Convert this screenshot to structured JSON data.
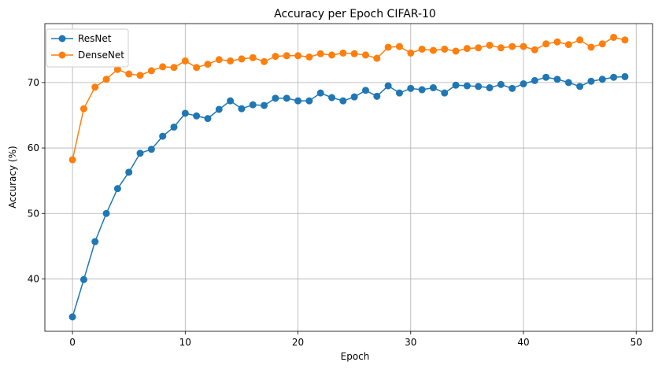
{
  "chart_data": {
    "type": "line",
    "title": "Accuracy per Epoch CIFAR-10",
    "xlabel": "Epoch",
    "ylabel": "Accuracy (%)",
    "xlim": [
      -2.45,
      51.45
    ],
    "ylim": [
      32.0,
      79.0
    ],
    "xticks": [
      0,
      10,
      20,
      30,
      40,
      50
    ],
    "yticks": [
      40,
      50,
      60,
      70
    ],
    "grid": true,
    "legend_position": "top-left",
    "x": [
      0,
      1,
      2,
      3,
      4,
      5,
      6,
      7,
      8,
      9,
      10,
      11,
      12,
      13,
      14,
      15,
      16,
      17,
      18,
      19,
      20,
      21,
      22,
      23,
      24,
      25,
      26,
      27,
      28,
      29,
      30,
      31,
      32,
      33,
      34,
      35,
      36,
      37,
      38,
      39,
      40,
      41,
      42,
      43,
      44,
      45,
      46,
      47,
      48,
      49
    ],
    "series": [
      {
        "name": "ResNet",
        "color": "#1f77b4",
        "values": [
          34.2,
          39.9,
          45.7,
          50.0,
          53.8,
          56.3,
          59.2,
          59.8,
          61.8,
          63.2,
          65.3,
          64.9,
          64.5,
          65.9,
          67.2,
          66.0,
          66.6,
          66.5,
          67.6,
          67.6,
          67.2,
          67.2,
          68.4,
          67.7,
          67.2,
          67.8,
          68.8,
          67.9,
          69.5,
          68.4,
          69.1,
          68.9,
          69.2,
          68.4,
          69.6,
          69.5,
          69.4,
          69.2,
          69.7,
          69.1,
          69.8,
          70.3,
          70.8,
          70.5,
          70.0,
          69.4,
          70.2,
          70.5,
          70.8,
          70.9
        ]
      },
      {
        "name": "DenseNet",
        "color": "#ff7f0e",
        "values": [
          58.2,
          66.0,
          69.3,
          70.5,
          72.0,
          71.3,
          71.1,
          71.8,
          72.4,
          72.3,
          73.3,
          72.3,
          72.8,
          73.5,
          73.3,
          73.6,
          73.8,
          73.2,
          74.0,
          74.1,
          74.1,
          73.9,
          74.4,
          74.2,
          74.5,
          74.4,
          74.2,
          73.7,
          75.4,
          75.5,
          74.5,
          75.1,
          74.9,
          75.1,
          74.8,
          75.2,
          75.3,
          75.7,
          75.3,
          75.5,
          75.5,
          75.0,
          75.9,
          76.2,
          75.8,
          76.5,
          75.4,
          75.9,
          76.9,
          76.5
        ]
      }
    ]
  }
}
